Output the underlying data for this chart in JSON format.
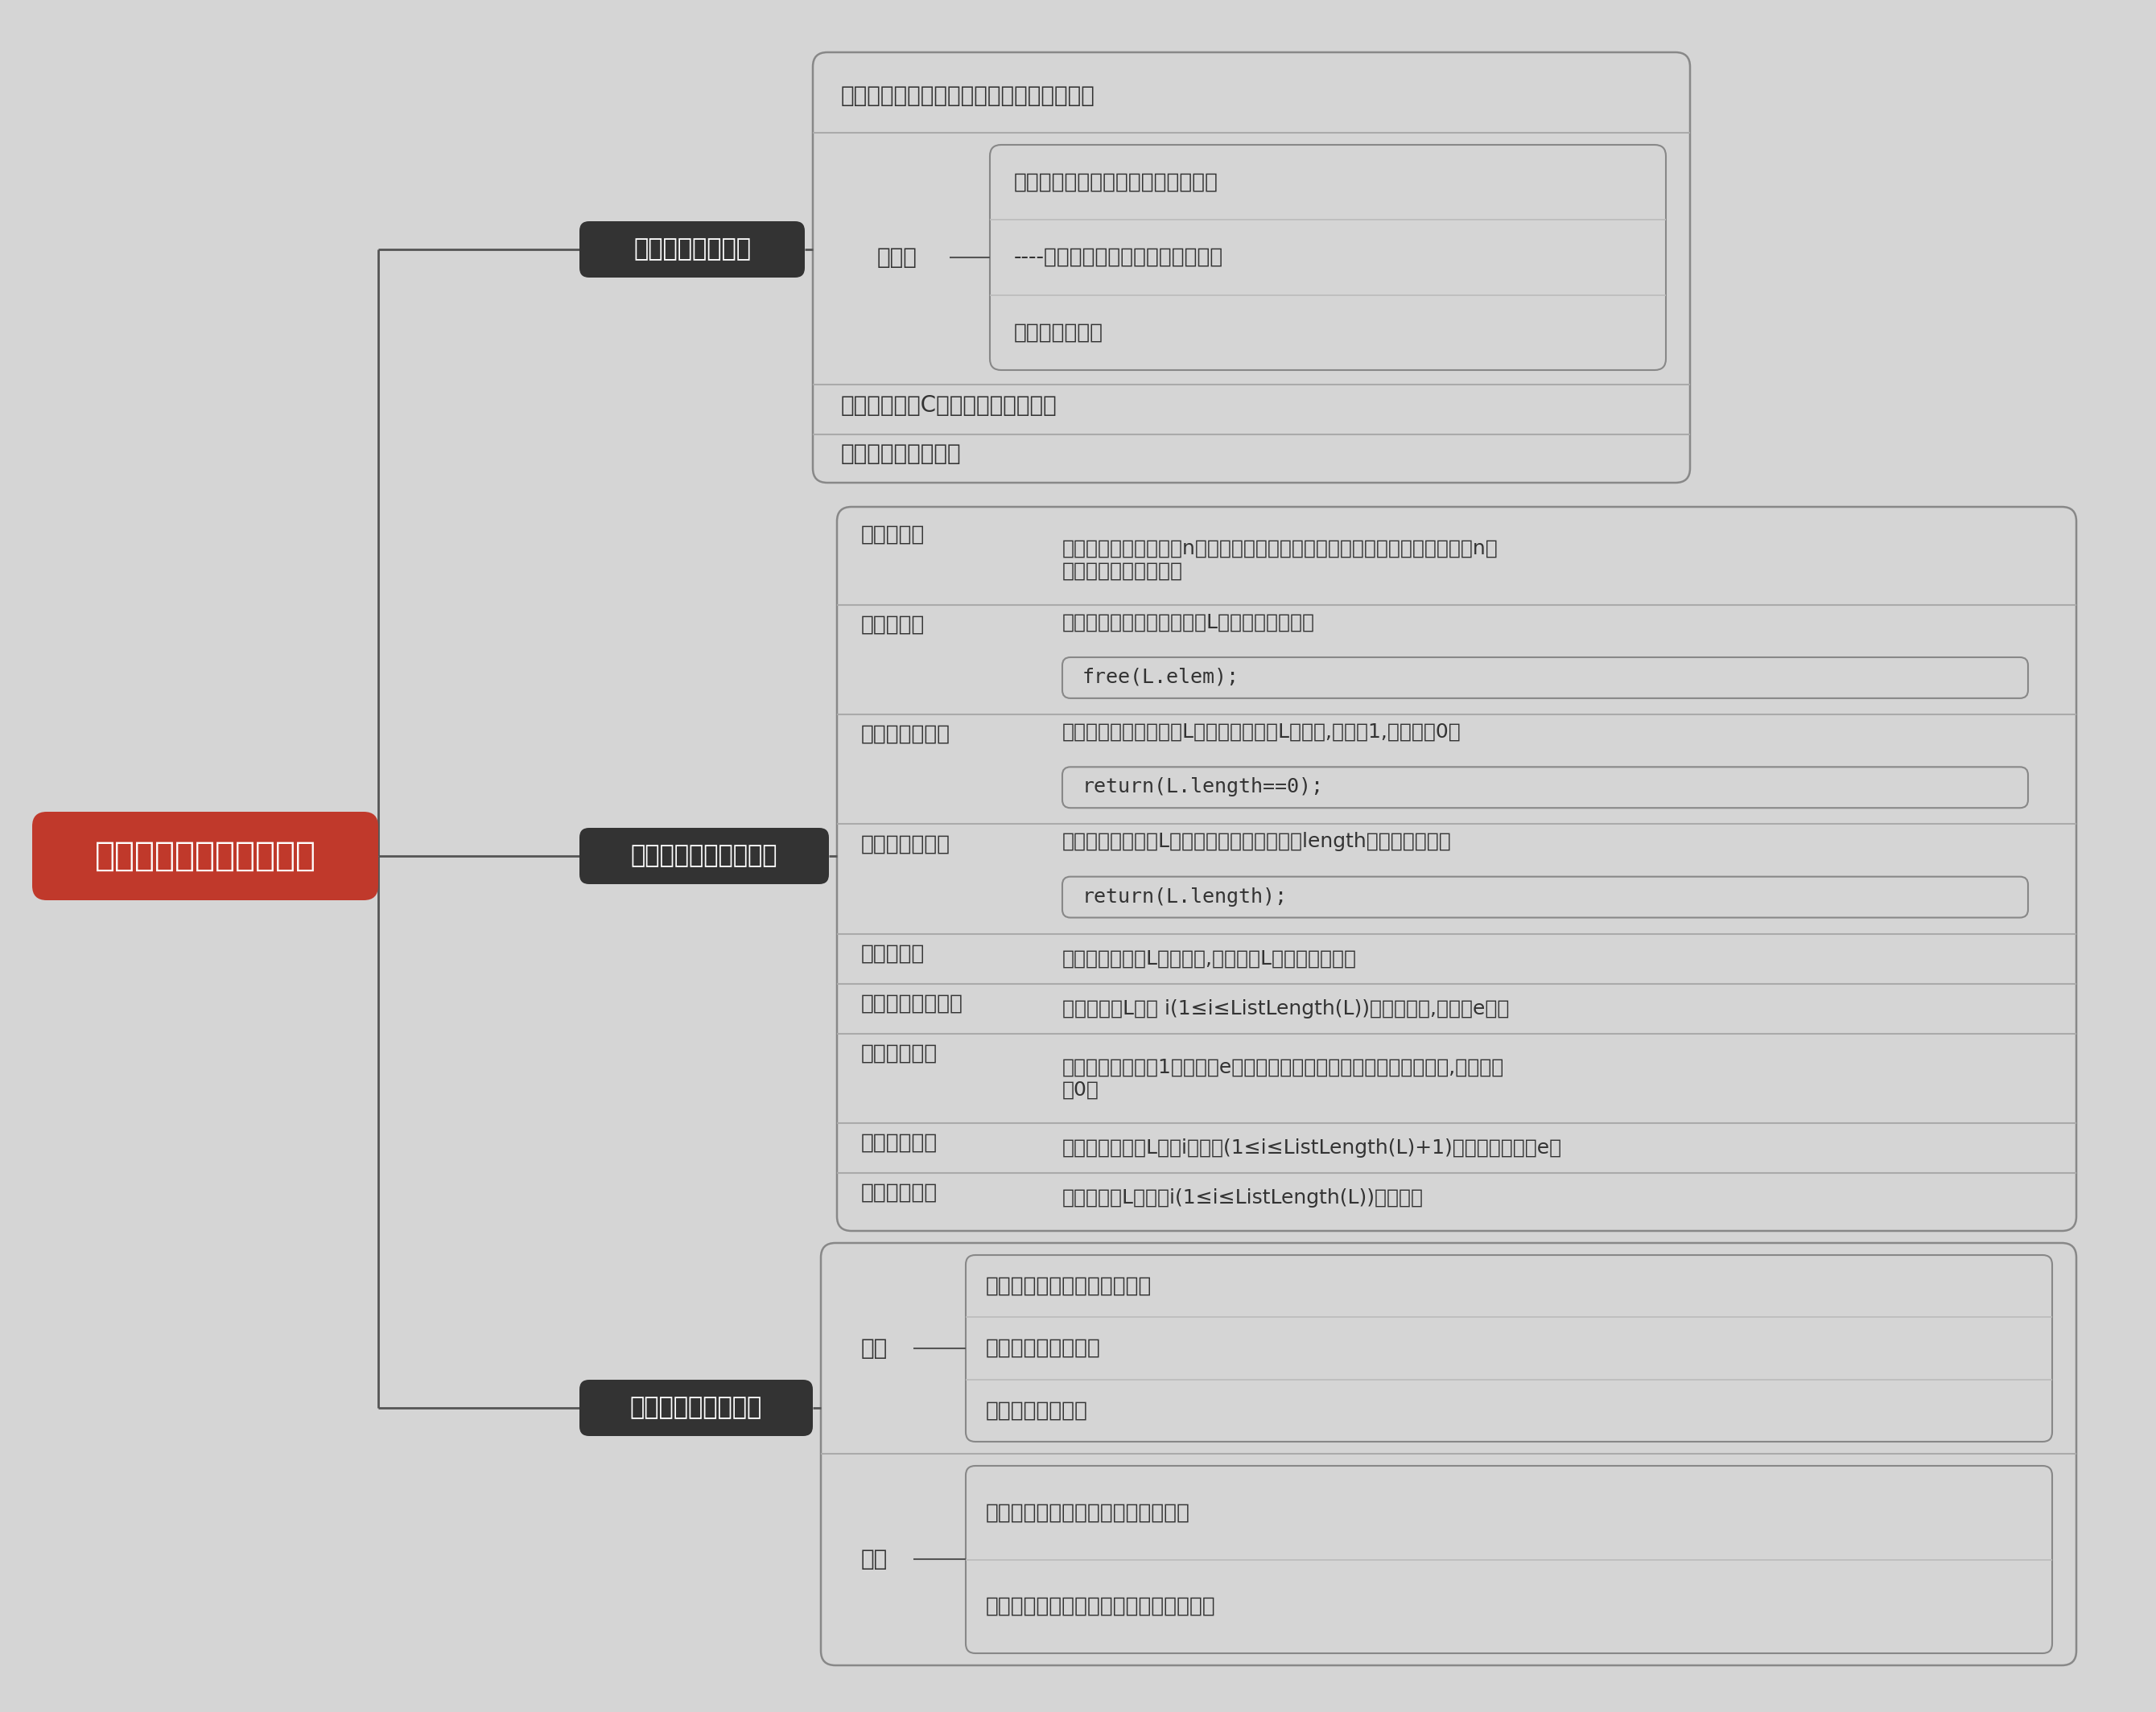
{
  "title": "线性表的顺序表示和实现",
  "bg_color": "#d5d5d5",
  "root_box_color": "#c0392b",
  "root_text_color": "#ffffff",
  "dark_box_color": "#333333",
  "dark_text_color": "#ffffff",
  "light_text_color": "#333333",
  "line_color": "#555555",
  "branch1_label": "线性表的顺序表示",
  "branch2_label": "顺序表基本运算的实现",
  "branch3_label": "顺序存储结构的特点",
  "b1_top_text": "用一段连续存储空间存储线性表中的各元素",
  "b1_texian_label": "特点：",
  "b1_texian_items": [
    "逻辑上相邻的元素其物理地址也相邻",
    "----用存储位置来直接反映逻辑关系",
    "可实现随机存取"
  ],
  "b1_shixian": "实现：可采用C语言的一维数组实现",
  "b1_jiegou": "线性表顺序存储结构",
  "b2_children": [
    {
      "label": "建立顺序表",
      "desc": "其方法是将给定的含有n个元素的数组的每个元素依次放入到顺序表中，并将n赋\n给顺序表的长度成员。",
      "code": null,
      "has_inner_box": false,
      "multi_line_desc": true
    },
    {
      "label": "销毁线性表",
      "desc": "该运算的结果是释放线性表L占用的内存空间。",
      "code": "free(L.elem);",
      "has_inner_box": true,
      "multi_line_desc": false
    },
    {
      "label": "判定是否为空表",
      "desc": "该运算返回一个值表示L是否为空表。若L为空表,则返回1,否则返回0。",
      "code": "return(L.length==0);",
      "has_inner_box": true,
      "multi_line_desc": false
    },
    {
      "label": "求线性表的长度",
      "desc": "该运算返回顺序表L的长度。实际上只需返回length成员的值即可。",
      "code": "return(L.length);",
      "has_inner_box": true,
      "multi_line_desc": false
    },
    {
      "label": "输出线性表",
      "desc": "该运算当线性表L不为空时,顺序显示L中各元素的值。",
      "code": null,
      "has_inner_box": false,
      "multi_line_desc": false
    },
    {
      "label": "求某个数据元素值",
      "desc": "该运算返回L中第 i(1≤i≤ListLength(L))个元素的值,存放在e中。",
      "code": null,
      "has_inner_box": false,
      "multi_line_desc": false
    },
    {
      "label": "按元素值查找",
      "desc": "该运算顺序查找第1个值域与e相等的元素的位序。若这样的元素不存在,则返回值\n为0。",
      "code": null,
      "has_inner_box": false,
      "multi_line_desc": true
    },
    {
      "label": "插入数据元素",
      "desc": "该运算在顺序表L的第i个位置(1≤i≤ListLength(L)+1)上插入新的元素e。",
      "code": null,
      "has_inner_box": false,
      "multi_line_desc": false
    },
    {
      "label": "删除数据元素",
      "desc": "删除顺序表L中的第i(1≤i≤ListLength(L))个元素。",
      "code": null,
      "has_inner_box": false,
      "multi_line_desc": false
    }
  ],
  "b3_you_items": [
    "逻辑关系相邻，物理位置相邻",
    "可随机存取任一元素",
    "存储空间使用紧凑"
  ],
  "b3_que_items": [
    "插入、删除操作需要移动大量的元素",
    "分配空间需按固定大小分配，利用不充分"
  ]
}
